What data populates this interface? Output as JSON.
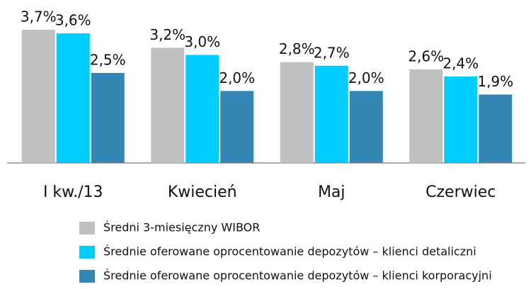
{
  "chart_data": {
    "type": "bar",
    "categories": [
      "I kw./13",
      "Kwiecień",
      "Maj",
      "Czerwiec"
    ],
    "series": [
      {
        "name": "Średni 3-miesięczny WIBOR",
        "color": "#c0c0c0",
        "values": [
          3.7,
          3.2,
          2.8,
          2.6
        ],
        "value_labels": [
          "3,7%",
          "3,2%",
          "2,8%",
          "2,6%"
        ]
      },
      {
        "name": "Średnie oferowane oprocentowanie depozytów – klienci detaliczni",
        "color": "#00ccff",
        "values": [
          3.6,
          3.0,
          2.7,
          2.4
        ],
        "value_labels": [
          "3,6%",
          "3,0%",
          "2,7%",
          "2,4%"
        ]
      },
      {
        "name": "Średnie oferowane oprocentowanie depozytów – klienci korporacyjni",
        "color": "#3486b4",
        "values": [
          2.5,
          2.0,
          2.0,
          1.9
        ],
        "value_labels": [
          "2,5%",
          "2,0%",
          "2,0%",
          "1,9%"
        ]
      }
    ],
    "legend": "bottom"
  }
}
